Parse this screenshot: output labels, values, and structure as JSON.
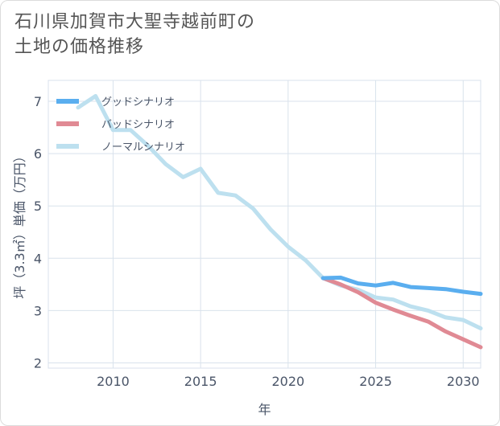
{
  "title_line1": "石川県加賀市大聖寺越前町の",
  "title_line2": "土地の価格推移",
  "chart_data": {
    "type": "line",
    "xlabel": "年",
    "ylabel": "坪（3.3㎡）単価（万円）",
    "xlim": [
      2006.3,
      2031
    ],
    "ylim": [
      1.9,
      7.4
    ],
    "xticks": [
      2010,
      2015,
      2020,
      2025,
      2030
    ],
    "yticks": [
      2,
      3,
      4,
      5,
      6,
      7
    ],
    "grid": true,
    "legend_position": "top-left",
    "series": [
      {
        "name": "グッドシナリオ",
        "color": "#5aaeef",
        "x": [
          2022,
          2023,
          2024,
          2025,
          2026,
          2027,
          2028,
          2029,
          2030,
          2031
        ],
        "y": [
          3.62,
          3.63,
          3.52,
          3.48,
          3.53,
          3.45,
          3.43,
          3.41,
          3.36,
          3.32
        ]
      },
      {
        "name": "バッドシナリオ",
        "color": "#e08a94",
        "x": [
          2022,
          2023,
          2024,
          2025,
          2026,
          2027,
          2028,
          2029,
          2030,
          2031
        ],
        "y": [
          3.62,
          3.5,
          3.35,
          3.15,
          3.02,
          2.9,
          2.79,
          2.6,
          2.45,
          2.3
        ]
      },
      {
        "name": "ノーマルシナリオ",
        "color": "#bde0ef",
        "x": [
          2008,
          2009,
          2010,
          2011,
          2012,
          2013,
          2014,
          2015,
          2016,
          2017,
          2018,
          2019,
          2020,
          2021,
          2022,
          2023,
          2024,
          2025,
          2026,
          2027,
          2028,
          2029,
          2030,
          2031
        ],
        "y": [
          6.88,
          7.1,
          6.45,
          6.45,
          6.15,
          5.8,
          5.55,
          5.71,
          5.25,
          5.2,
          4.95,
          4.55,
          4.22,
          3.96,
          3.62,
          3.48,
          3.4,
          3.25,
          3.21,
          3.08,
          3.0,
          2.87,
          2.82,
          2.66
        ]
      }
    ]
  }
}
